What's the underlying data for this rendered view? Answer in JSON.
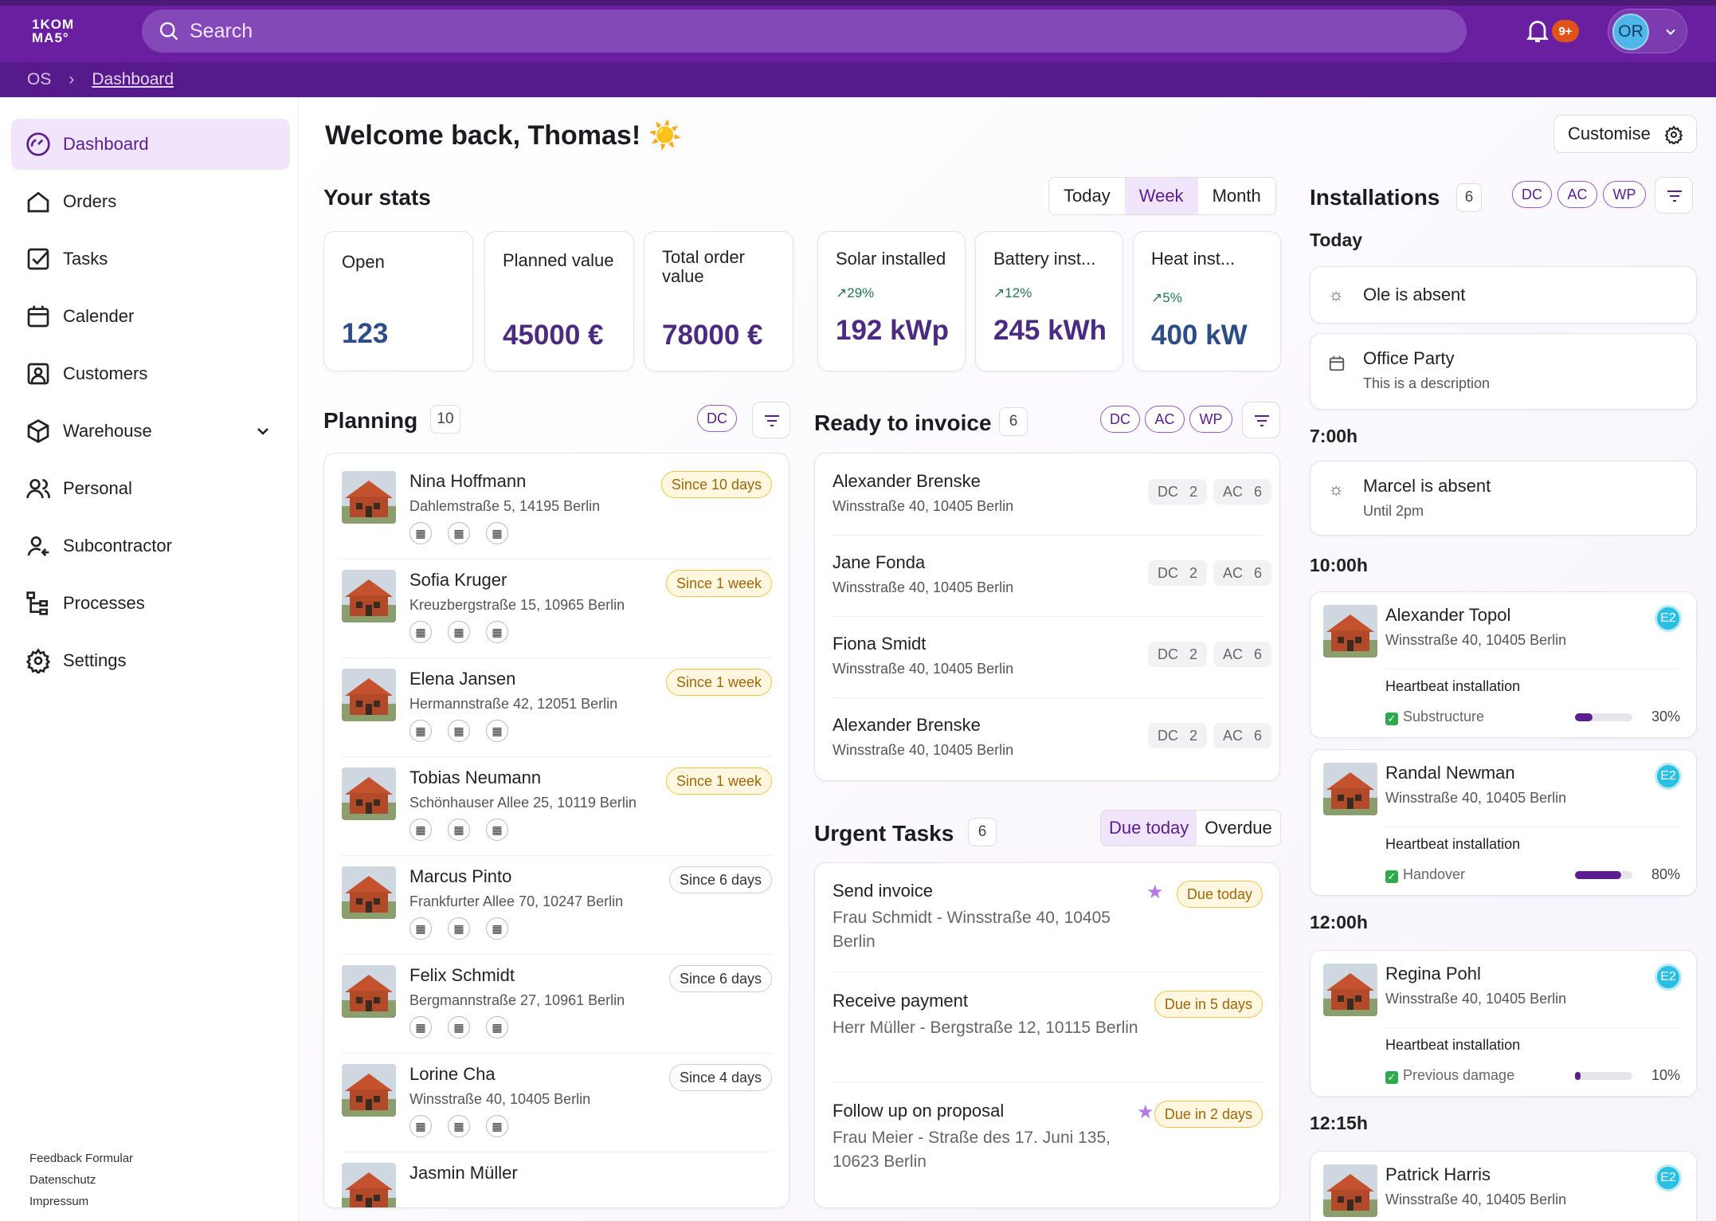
{
  "app": {
    "logo_line1": "1KOM",
    "logo_line2": "MA5°",
    "search_placeholder": "Search",
    "notif_count": "9+",
    "user_initials": "OR"
  },
  "breadcrumb": {
    "root": "OS",
    "current": "Dashboard"
  },
  "sidebar": {
    "items": [
      {
        "label": "Dashboard",
        "icon": "gauge-icon"
      },
      {
        "label": "Orders",
        "icon": "home-icon"
      },
      {
        "label": "Tasks",
        "icon": "checkbox-icon"
      },
      {
        "label": "Calender",
        "icon": "calendar-icon"
      },
      {
        "label": "Customers",
        "icon": "user-card-icon"
      },
      {
        "label": "Warehouse",
        "icon": "box-icon"
      },
      {
        "label": "Personal",
        "icon": "users-icon"
      },
      {
        "label": "Subcontractor",
        "icon": "user-arrow-icon"
      },
      {
        "label": "Processes",
        "icon": "flow-icon"
      },
      {
        "label": "Settings",
        "icon": "gear-icon"
      }
    ],
    "footer": [
      "Feedback Formular",
      "Datenschutz",
      "Impressum"
    ]
  },
  "header": {
    "welcome": "Welcome back, Thomas!",
    "emoji": "☀️",
    "customise": "Customise"
  },
  "stats": {
    "title": "Your stats",
    "tabs": [
      "Today",
      "Week",
      "Month"
    ],
    "active_tab": "Week",
    "cards": [
      {
        "label": "Open",
        "value": "123"
      },
      {
        "label": "Planned value",
        "value": "45000 €"
      },
      {
        "label": "Total order value",
        "value": "78000 €"
      },
      {
        "label": "Solar installed",
        "trend": "29%",
        "value": "192 kWp"
      },
      {
        "label": "Battery inst...",
        "trend": "12%",
        "value": "245 kWh"
      },
      {
        "label": "Heat inst...",
        "trend": "5%",
        "value": "400 kW"
      }
    ]
  },
  "planning": {
    "title": "Planning",
    "count": "10",
    "tag": "DC",
    "rows": [
      {
        "name": "Nina Hoffmann",
        "addr": "Dahlemstraße 5, 14195 Berlin",
        "since": "Since 10 days",
        "warn": true
      },
      {
        "name": "Sofia Kruger",
        "addr": "Kreuzbergstraße 15, 10965 Berlin",
        "since": "Since 1 week",
        "warn": true
      },
      {
        "name": "Elena Jansen",
        "addr": "Hermannstraße 42, 12051 Berlin",
        "since": "Since 1 week",
        "warn": true
      },
      {
        "name": "Tobias Neumann",
        "addr": "Schönhauser Allee 25, 10119 Berlin",
        "since": "Since 1 week",
        "warn": true
      },
      {
        "name": "Marcus Pinto",
        "addr": "Frankfurter Allee 70, 10247 Berlin",
        "since": "Since 6 days",
        "warn": false
      },
      {
        "name": "Felix Schmidt",
        "addr": "Bergmannstraße 27, 10961 Berlin",
        "since": "Since 6 days",
        "warn": false
      },
      {
        "name": "Lorine Cha",
        "addr": "Winsstraße 40, 10405 Berlin",
        "since": "Since 4 days",
        "warn": false
      },
      {
        "name": "Jasmin Müller",
        "addr": "",
        "since": "",
        "warn": false
      }
    ]
  },
  "invoice": {
    "title": "Ready to invoice",
    "count": "6",
    "tags": [
      "DC",
      "AC",
      "WP"
    ],
    "rows": [
      {
        "name": "Alexander Brenske",
        "addr": "Winsstraße 40, 10405 Berlin",
        "dc": "DC",
        "dcn": "2",
        "ac": "AC",
        "acn": "6"
      },
      {
        "name": "Jane Fonda",
        "addr": "Winsstraße 40, 10405 Berlin",
        "dc": "DC",
        "dcn": "2",
        "ac": "AC",
        "acn": "6"
      },
      {
        "name": "Fiona Smidt",
        "addr": "Winsstraße 40, 10405 Berlin",
        "dc": "DC",
        "dcn": "2",
        "ac": "AC",
        "acn": "6"
      },
      {
        "name": "Alexander Brenske",
        "addr": "Winsstraße 40, 10405 Berlin",
        "dc": "DC",
        "dcn": "2",
        "ac": "AC",
        "acn": "6"
      }
    ]
  },
  "urgent": {
    "title": "Urgent Tasks",
    "count": "6",
    "tabs": [
      "Due today",
      "Overdue"
    ],
    "rows": [
      {
        "name": "Send invoice",
        "desc": "Frau Schmidt - Winsstraße 40, 10405 Berlin",
        "due": "Due today",
        "star": true
      },
      {
        "name": "Receive payment",
        "desc": "Herr Müller - Bergstraße 12, 10115 Berlin",
        "due": "Due in 5 days",
        "star": false
      },
      {
        "name": "Follow up on proposal",
        "desc": "Frau Meier - Straße des 17. Juni 135, 10623 Berlin",
        "due": "Due in 2 days",
        "star": true
      }
    ]
  },
  "installations": {
    "title": "Installations",
    "count": "6",
    "tags": [
      "DC",
      "AC",
      "WP"
    ],
    "today": "Today",
    "absent1": {
      "name": "Ole is absent"
    },
    "party": {
      "name": "Office Party",
      "desc": "This is a description"
    },
    "t1": "7:00h",
    "absent2": {
      "name": "Marcel is absent",
      "desc": "Until 2pm"
    },
    "t2": "10:00h",
    "ev": [
      {
        "name": "Alexander Topol",
        "addr": "Winsstraße 40, 10405 Berlin",
        "badge": "E2",
        "type": "Heartbeat installation",
        "step": "Substructure",
        "pct": "30%",
        "fill": 0.3
      },
      {
        "name": "Randal Newman",
        "addr": "Winsstraße 40, 10405 Berlin",
        "badge": "E2",
        "type": "Heartbeat installation",
        "step": "Handover",
        "pct": "80%",
        "fill": 0.8
      },
      {
        "name": "Regina Pohl",
        "addr": "Winsstraße 40, 10405 Berlin",
        "badge": "E2",
        "type": "Heartbeat installation",
        "step": "Previous damage",
        "pct": "10%",
        "fill": 0.1
      },
      {
        "name": "Patrick Harris",
        "addr": "Winsstraße 40, 10405 Berlin",
        "badge": "E2"
      }
    ],
    "t3": "12:00h",
    "t4": "12:15h"
  }
}
